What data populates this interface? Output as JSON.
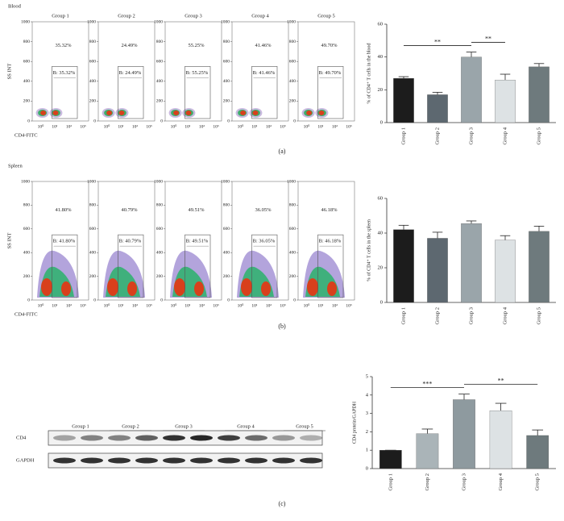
{
  "panels": [
    {
      "tissue": "Blood",
      "y_axis_label": "SS INT",
      "x_axis_label": "CD4-FITC",
      "panel_label": "(a)",
      "flow_plots": [
        {
          "title": "Group 1",
          "percent": "35.32%",
          "gate": "B: 35.32%"
        },
        {
          "title": "Group 2",
          "percent": "24.49%",
          "gate": "B: 24.49%"
        },
        {
          "title": "Group 3",
          "percent": "55.25%",
          "gate": "B: 55.25%"
        },
        {
          "title": "Group 4",
          "percent": "41.46%",
          "gate": "B: 41.46%"
        },
        {
          "title": "Group 5",
          "percent": "49.70%",
          "gate": "B: 49.70%"
        }
      ]
    },
    {
      "tissue": "Spleen",
      "y_axis_label": "SS INT",
      "x_axis_label": "CD4-FITC",
      "panel_label": "(b)",
      "flow_plots": [
        {
          "percent": "41.80%",
          "gate": "B: 41.80%"
        },
        {
          "percent": "40.79%",
          "gate": "B: 40.79%"
        },
        {
          "percent": "49.51%",
          "gate": "B: 49.51%"
        },
        {
          "percent": "36.05%",
          "gate": "B: 36.05%"
        },
        {
          "percent": "46.18%",
          "gate": "B: 46.18%"
        }
      ]
    }
  ],
  "flow_yticks": [
    0,
    200,
    400,
    600,
    800,
    1000
  ],
  "flow_ylim": [
    0,
    1000
  ],
  "flow_xticks": [
    "10⁰",
    "10¹",
    "10²",
    "10³"
  ],
  "blot": {
    "groups": [
      "Group 1",
      "Group 2",
      "Group 3",
      "Group 4",
      "Group 5"
    ],
    "rows": [
      "CD4",
      "GAPDH"
    ],
    "panel_label": "(c)"
  },
  "chart_data": [
    {
      "type": "bar",
      "y_label": "% of CD4⁺ T cells in the blood",
      "categories": [
        "Group 1",
        "Group 2",
        "Group 3",
        "Group 4",
        "Group 5"
      ],
      "values": [
        27,
        17,
        40,
        26,
        34
      ],
      "errors": [
        1,
        1.5,
        3,
        3.5,
        2
      ],
      "colors": [
        "#1c1c1c",
        "#5d6870",
        "#9aa5aa",
        "#dde2e4",
        "#6e7a7d"
      ],
      "ylim": [
        0,
        60
      ],
      "yticks": [
        0,
        20,
        40,
        60
      ],
      "significance": [
        {
          "from": 0,
          "to": 2,
          "label": "**"
        },
        {
          "from": 2,
          "to": 3,
          "label": "**"
        }
      ]
    },
    {
      "type": "bar",
      "y_label": "% of CD4⁺ T cells in the spleen",
      "categories": [
        "Group 1",
        "Group 2",
        "Group 3",
        "Group 4",
        "Group 5"
      ],
      "values": [
        42,
        37,
        45.5,
        36,
        41
      ],
      "errors": [
        2.5,
        3.5,
        1.5,
        2.5,
        3
      ],
      "colors": [
        "#1c1c1c",
        "#5d6870",
        "#9aa5aa",
        "#dde2e4",
        "#6e7a7d"
      ],
      "ylim": [
        0,
        60
      ],
      "yticks": [
        0,
        20,
        40,
        60
      ],
      "significance": []
    },
    {
      "type": "bar",
      "y_label": "CD4 protein/GAPDH",
      "categories": [
        "Group 1",
        "Group 2",
        "Group 3",
        "Group 4",
        "Group 5"
      ],
      "values": [
        1,
        1.9,
        3.75,
        3.15,
        1.8
      ],
      "errors": [
        0,
        0.25,
        0.3,
        0.4,
        0.3
      ],
      "colors": [
        "#1c1c1c",
        "#aab4b8",
        "#8e9a9f",
        "#dde2e4",
        "#6e7a7d"
      ],
      "ylim": [
        0,
        5
      ],
      "yticks": [
        0,
        1,
        2,
        3,
        4,
        5
      ],
      "significance": [
        {
          "from": 0,
          "to": 2,
          "label": "***"
        },
        {
          "from": 2,
          "to": 4,
          "label": "**"
        }
      ]
    }
  ]
}
